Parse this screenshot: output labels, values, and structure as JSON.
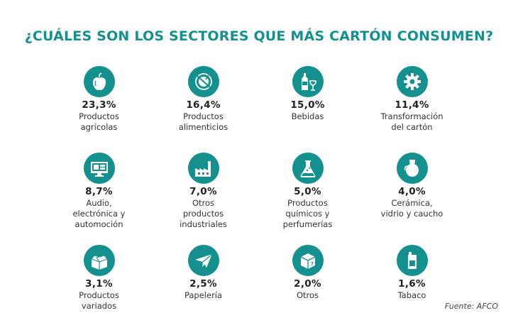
{
  "title": "¿CUÁLES SON LOS SECTORES QUE MÁS CARTÓN CONSUMEN?",
  "source": "Fuente: AFCO",
  "accent_color": "#14918f",
  "chart_data": {
    "type": "table",
    "title": "¿CUÁLES SON LOS SECTORES QUE MÁS CARTÓN CONSUMEN?",
    "unit": "%",
    "items": [
      {
        "value": 23.3,
        "pct_label": "23,3%",
        "label_lines": [
          "Productos",
          "agrícolas"
        ],
        "icon": "apple-icon"
      },
      {
        "value": 16.4,
        "pct_label": "16,4%",
        "label_lines": [
          "Productos",
          "alimenticios"
        ],
        "icon": "plate-icon"
      },
      {
        "value": 15.0,
        "pct_label": "15,0%",
        "label_lines": [
          "Bebidas"
        ],
        "icon": "bottle-glass-icon"
      },
      {
        "value": 11.4,
        "pct_label": "11,4%",
        "label_lines": [
          "Transformación",
          "del cartón"
        ],
        "icon": "gear-icon"
      },
      {
        "value": 8.7,
        "pct_label": "8,7%",
        "label_lines": [
          "Audio,",
          "electrónica y",
          "automoción"
        ],
        "icon": "monitor-icon"
      },
      {
        "value": 7.0,
        "pct_label": "7,0%",
        "label_lines": [
          "Otros",
          "productos",
          "industriales"
        ],
        "icon": "factory-icon"
      },
      {
        "value": 5.0,
        "pct_label": "5,0%",
        "label_lines": [
          "Productos",
          "químicos y",
          "perfumerías"
        ],
        "icon": "flask-icon"
      },
      {
        "value": 4.0,
        "pct_label": "4,0%",
        "label_lines": [
          "Cerámica,",
          "vidrio y caucho"
        ],
        "icon": "vase-icon"
      },
      {
        "value": 3.1,
        "pct_label": "3,1%",
        "label_lines": [
          "Productos",
          "variados"
        ],
        "icon": "open-box-icon"
      },
      {
        "value": 2.5,
        "pct_label": "2,5%",
        "label_lines": [
          "Papelería"
        ],
        "icon": "paper-plane-icon"
      },
      {
        "value": 2.0,
        "pct_label": "2,0%",
        "label_lines": [
          "Otros"
        ],
        "icon": "box-icon"
      },
      {
        "value": 1.6,
        "pct_label": "1,6%",
        "label_lines": [
          "Tabaco"
        ],
        "icon": "lighter-icon"
      }
    ]
  }
}
